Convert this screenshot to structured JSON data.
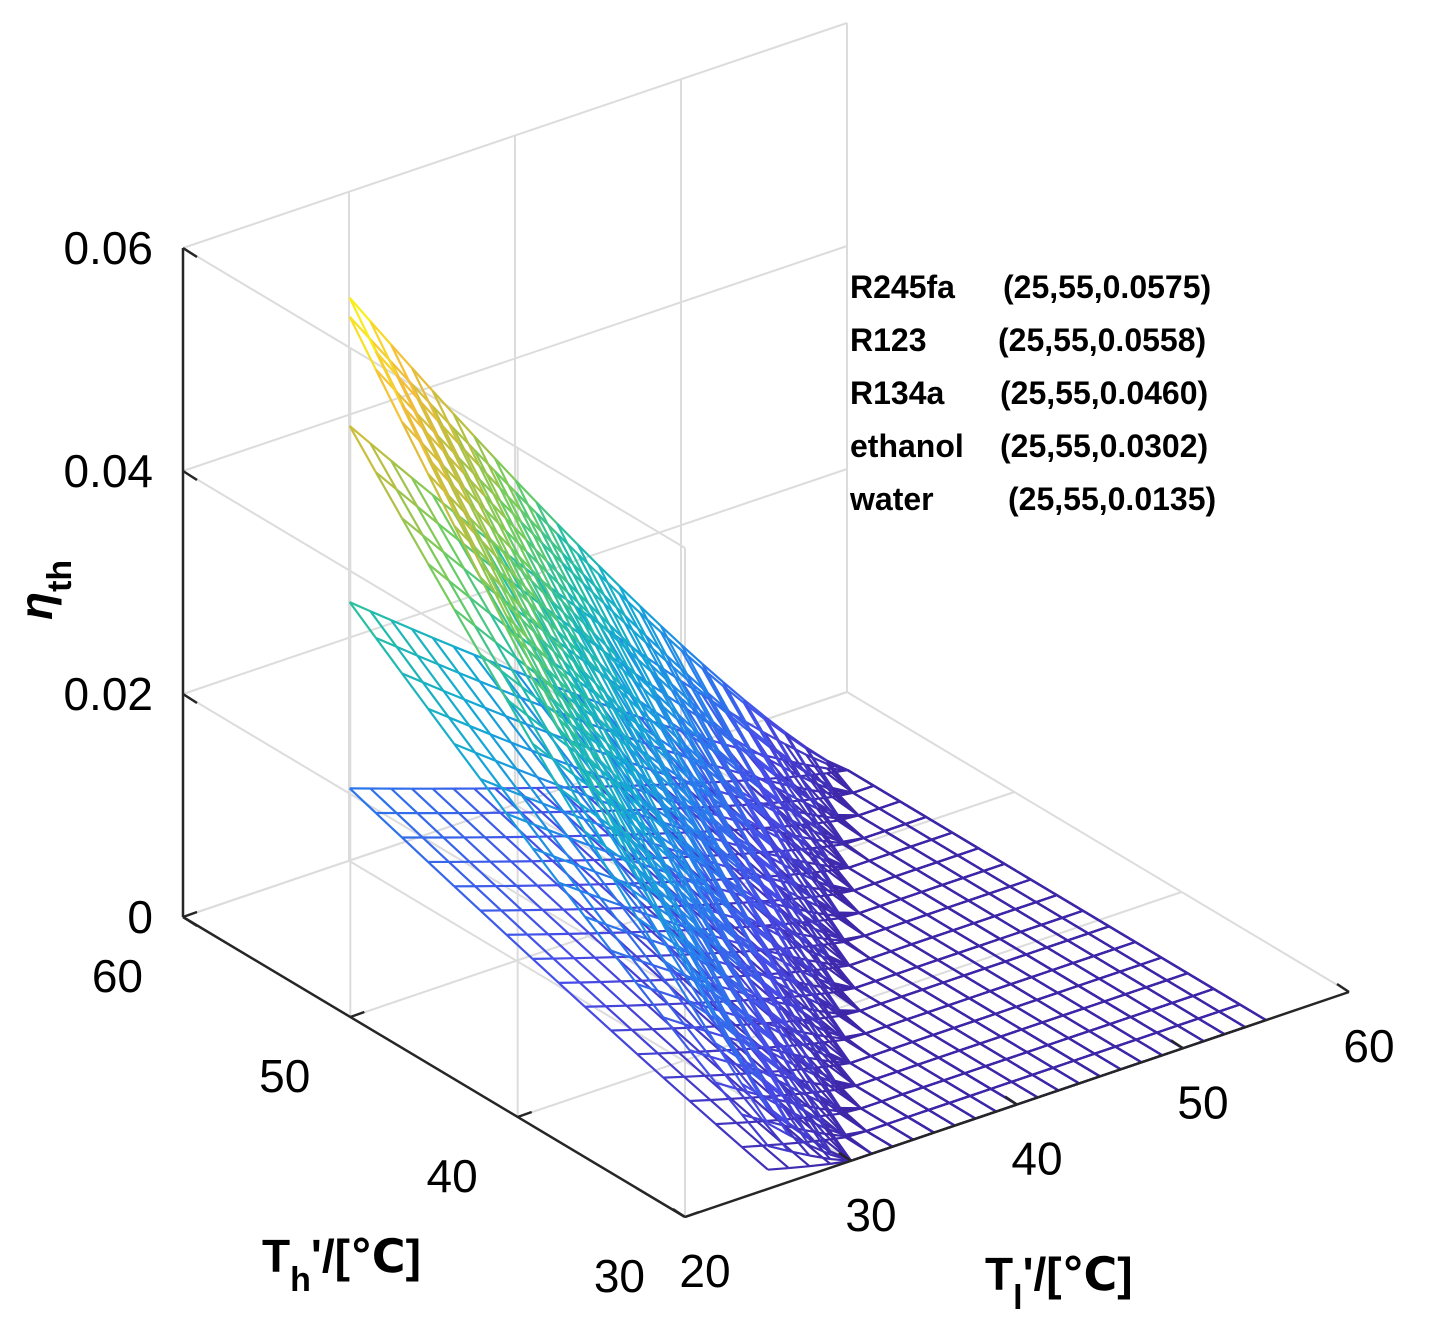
{
  "chart_data": {
    "type": "surface",
    "title": "",
    "axes": {
      "x": {
        "label": "T",
        "label_sub": "l",
        "label_rest": "'/[℃]",
        "range": [
          20,
          60
        ],
        "ticks": [
          "20",
          "30",
          "40",
          "50",
          "60"
        ]
      },
      "y": {
        "label": "T",
        "label_sub": "h",
        "label_rest": "'/[℃]",
        "range": [
          30,
          60
        ],
        "ticks": [
          "30",
          "40",
          "50",
          "60"
        ]
      },
      "z": {
        "label": "η",
        "label_sub": "th",
        "range": [
          0,
          0.06
        ],
        "ticks": [
          "0",
          "0.02",
          "0.04",
          "0.06"
        ]
      }
    },
    "grid": true,
    "colormap": "parula",
    "series": [
      {
        "name": "R245fa",
        "annotation": "(25,55,0.0575)",
        "point": [
          25,
          55,
          0.0575
        ]
      },
      {
        "name": "R123",
        "annotation": "(25,55,0.0558)",
        "point": [
          25,
          55,
          0.0558
        ]
      },
      {
        "name": "R134a",
        "annotation": "(25,55,0.0460)",
        "point": [
          25,
          55,
          0.046
        ]
      },
      {
        "name": "ethanol",
        "annotation": "(25,55,0.0302)",
        "point": [
          25,
          55,
          0.0302
        ]
      },
      {
        "name": "water",
        "annotation": "(25,55,0.0135)",
        "point": [
          25,
          55,
          0.0135
        ]
      }
    ]
  }
}
